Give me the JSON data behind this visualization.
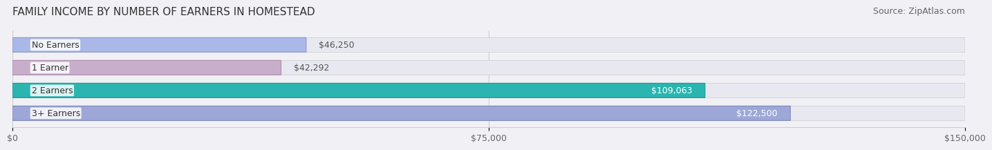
{
  "title": "FAMILY INCOME BY NUMBER OF EARNERS IN HOMESTEAD",
  "source": "Source: ZipAtlas.com",
  "categories": [
    "No Earners",
    "1 Earner",
    "2 Earners",
    "3+ Earners"
  ],
  "values": [
    46250,
    42292,
    109063,
    122500
  ],
  "bar_colors": [
    "#aab8e8",
    "#c9aecb",
    "#2ab5b0",
    "#9da8d8"
  ],
  "bar_edge_colors": [
    "#8898c8",
    "#a98eab",
    "#1a9590",
    "#7d88b8"
  ],
  "label_colors": [
    "#555555",
    "#555555",
    "#ffffff",
    "#ffffff"
  ],
  "x_max": 150000,
  "x_ticks": [
    0,
    75000,
    150000
  ],
  "x_tick_labels": [
    "$0",
    "$75,000",
    "$150,000"
  ],
  "background_color": "#f0f0f5",
  "bar_background_color": "#e8e8f0",
  "title_fontsize": 11,
  "source_fontsize": 9,
  "label_fontsize": 9,
  "tick_fontsize": 9
}
